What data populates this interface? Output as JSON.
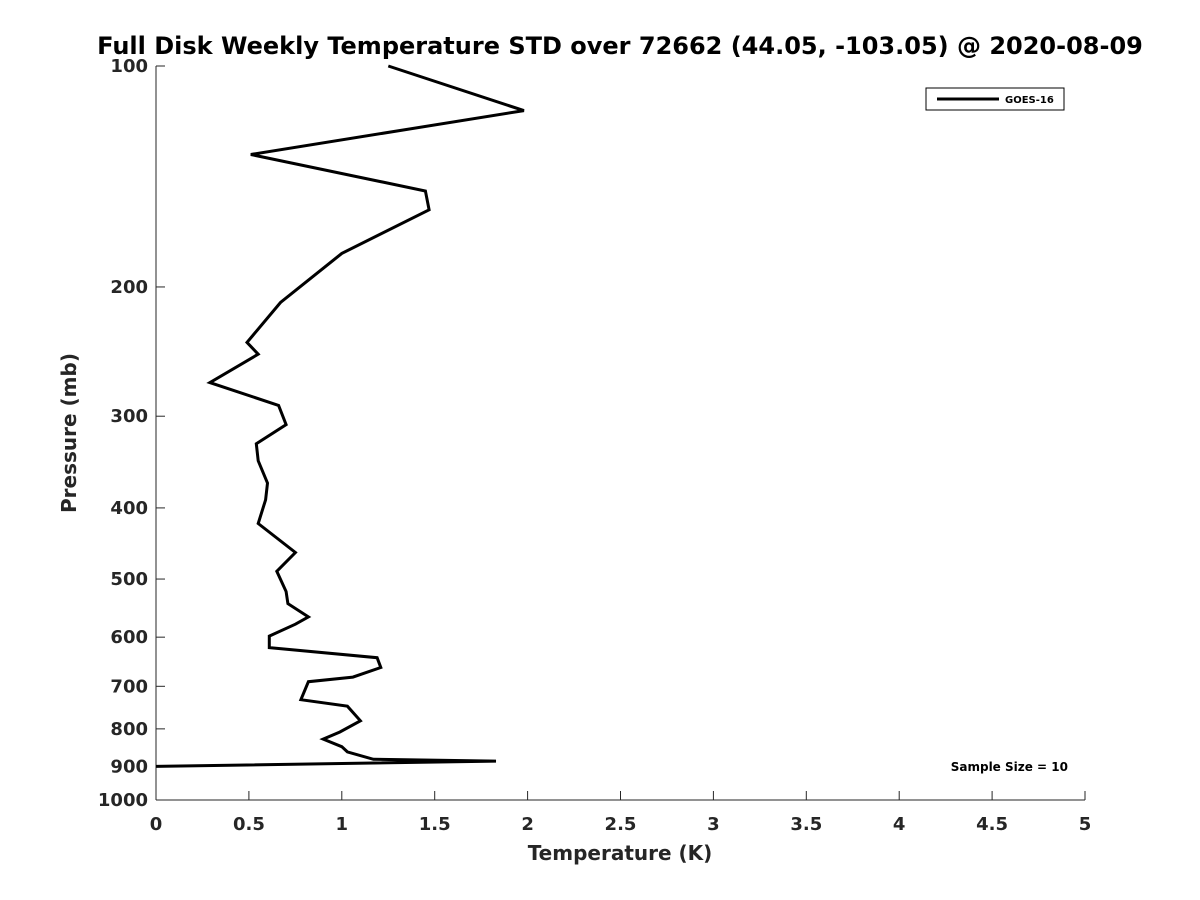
{
  "chart_data": {
    "type": "line",
    "title": "Full Disk Weekly Temperature STD over 72662 (44.05, -103.05) @ 2020-08-09",
    "xlabel": "Temperature (K)",
    "ylabel": "Pressure (mb)",
    "xlim": [
      0,
      5
    ],
    "ylim": [
      100,
      1000
    ],
    "yscale": "log",
    "y_reversed": true,
    "x_ticks": [
      "0",
      "0.5",
      "1",
      "1.5",
      "2",
      "2.5",
      "3",
      "3.5",
      "4",
      "4.5",
      "5"
    ],
    "y_ticks": [
      "100",
      "200",
      "300",
      "400",
      "500",
      "600",
      "700",
      "800",
      "900",
      "1000"
    ],
    "grid": false,
    "legend_position": "top-right",
    "annotation": "Sample Size = 10",
    "series": [
      {
        "name": "GOES-16",
        "color": "#000000",
        "x": [
          1.25,
          1.98,
          0.51,
          1.45,
          1.47,
          1.0,
          0.67,
          0.49,
          0.55,
          0.29,
          0.66,
          0.7,
          0.54,
          0.55,
          0.6,
          0.59,
          0.55,
          0.75,
          0.65,
          0.7,
          0.71,
          0.82,
          0.75,
          0.61,
          0.61,
          1.19,
          1.21,
          1.06,
          0.82,
          0.78,
          1.03,
          1.1,
          0.99,
          0.9,
          1.0,
          1.03,
          1.17,
          1.83,
          0.0
        ],
        "y": [
          100,
          115,
          132,
          148,
          157,
          180,
          210,
          238,
          247,
          270,
          290,
          308,
          327,
          345,
          370,
          390,
          420,
          460,
          488,
          520,
          540,
          563,
          576,
          598,
          620,
          640,
          660,
          680,
          690,
          730,
          745,
          780,
          808,
          826,
          846,
          860,
          880,
          885,
          900
        ]
      }
    ]
  }
}
